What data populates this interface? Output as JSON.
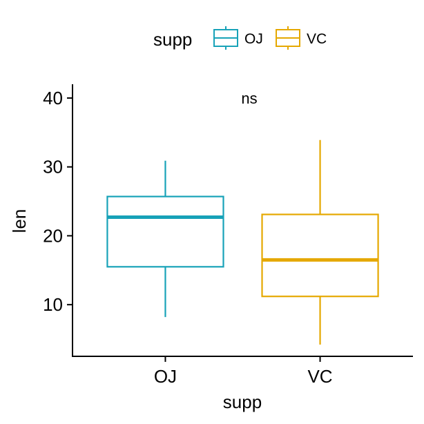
{
  "chart_data": {
    "type": "boxplot",
    "title": "",
    "xlabel": "supp",
    "ylabel": "len",
    "categories": [
      "OJ",
      "VC"
    ],
    "ylim": [
      2.5,
      42
    ],
    "yticks": [
      10,
      20,
      30,
      40
    ],
    "grid": false,
    "legend": {
      "title": "supp",
      "placement": "top",
      "entries": [
        "OJ",
        "VC"
      ]
    },
    "annotation": "ns",
    "series": [
      {
        "name": "OJ",
        "color": "#17A2B8",
        "min": 8.2,
        "q1": 15.5,
        "median": 22.7,
        "q3": 25.7,
        "max": 30.9
      },
      {
        "name": "VC",
        "color": "#E5A800",
        "min": 4.2,
        "q1": 11.2,
        "median": 16.5,
        "q3": 23.1,
        "max": 33.9
      }
    ]
  }
}
